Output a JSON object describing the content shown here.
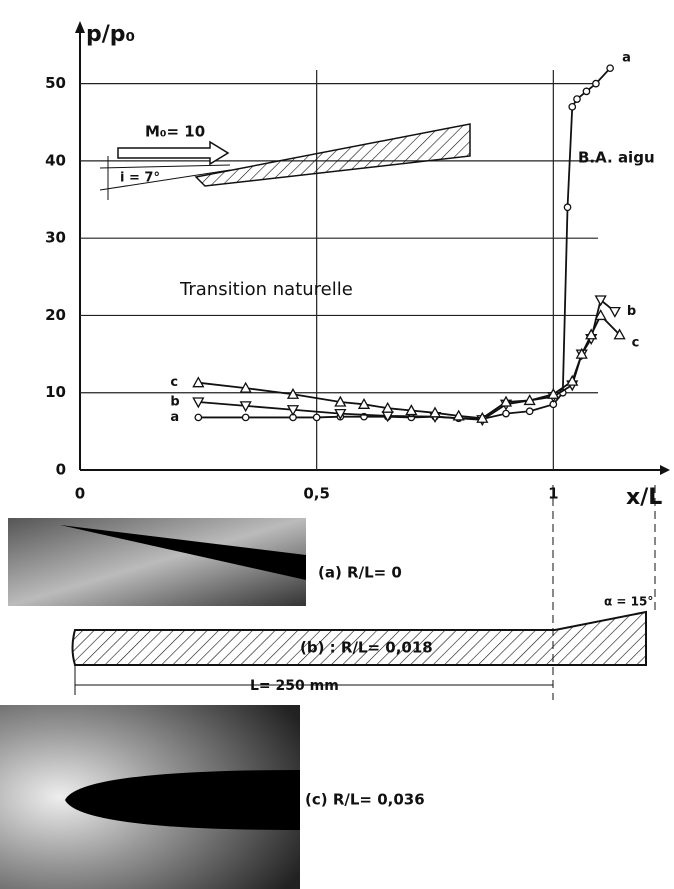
{
  "chart_data": {
    "type": "line",
    "y_label": "p/p₀",
    "x_label": "x/L",
    "xlim": [
      0,
      1.2
    ],
    "ylim": [
      0,
      55
    ],
    "xticks": [
      0,
      {
        "value": 0.5,
        "label": "0,5"
      },
      1
    ],
    "yticks": [
      0,
      10,
      20,
      30,
      40,
      50
    ],
    "grid": true,
    "series": [
      {
        "name": "a",
        "color": "#111111",
        "marker": "circle",
        "x": [
          0.25,
          0.35,
          0.45,
          0.5,
          0.55,
          0.6,
          0.65,
          0.7,
          0.75,
          0.8,
          0.85,
          0.9,
          0.95,
          1.0,
          1.02,
          1.03,
          1.04,
          1.05,
          1.07,
          1.09,
          1.12
        ],
        "values": [
          6.8,
          6.8,
          6.8,
          6.8,
          6.9,
          6.9,
          6.9,
          6.8,
          6.9,
          6.7,
          6.6,
          7.3,
          7.6,
          8.5,
          10,
          34,
          47,
          48,
          49,
          50,
          52
        ]
      },
      {
        "name": "b",
        "color": "#111111",
        "marker": "triangle-down",
        "x": [
          0.25,
          0.35,
          0.45,
          0.55,
          0.65,
          0.75,
          0.85,
          0.9,
          1.0,
          1.04,
          1.06,
          1.08,
          1.1,
          1.13
        ],
        "values": [
          8.8,
          8.3,
          7.8,
          7.3,
          7.0,
          6.9,
          6.5,
          8.5,
          9.5,
          11,
          15,
          17,
          22,
          20.5
        ]
      },
      {
        "name": "c",
        "color": "#111111",
        "marker": "triangle-up",
        "x": [
          0.25,
          0.35,
          0.45,
          0.55,
          0.6,
          0.65,
          0.7,
          0.75,
          0.8,
          0.85,
          0.9,
          0.95,
          1.0,
          1.04,
          1.06,
          1.08,
          1.1,
          1.14
        ],
        "values": [
          11.3,
          10.6,
          9.8,
          8.8,
          8.5,
          8.0,
          7.7,
          7.4,
          7.0,
          6.7,
          8.8,
          9.0,
          9.8,
          11.5,
          15,
          17.5,
          20,
          17.5
        ]
      }
    ],
    "annotations": {
      "mach": "M₀= 10",
      "incidence": "i = 7°",
      "leading_edge": "B.A. aigu",
      "transition": "Transition naturelle"
    }
  },
  "figure": {
    "case_a": "(a) R/L= 0",
    "case_b": "(b) : R/L= 0,018",
    "length": "L= 250 mm",
    "angle": "α = 15°",
    "case_c": "(c) R/L= 0,036"
  }
}
